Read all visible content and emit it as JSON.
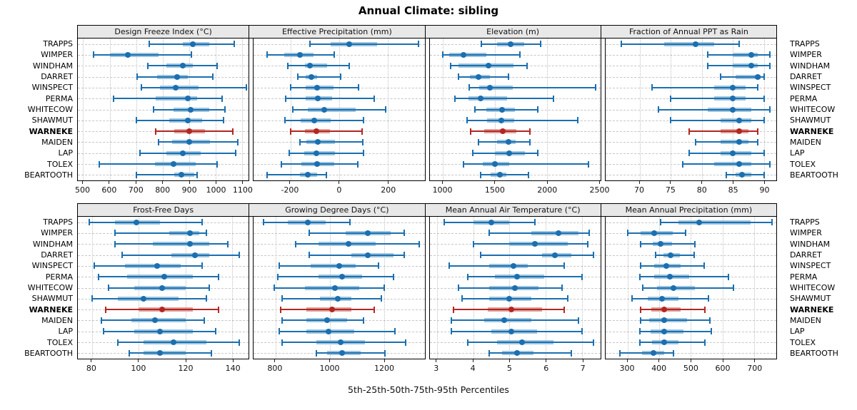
{
  "title": "Annual Climate: sibling",
  "caption": "5th-25th-50th-75th-95th Percentiles",
  "highlight_station": "WARNEKE",
  "colors": {
    "blue_line": "#1b6fb0",
    "blue_band": "#9ec5de",
    "blue_dot": "#1b6fb0",
    "red_line": "#b32622",
    "red_band": "#e0a09a",
    "red_dot": "#b32622",
    "strip_bg": "#e8e8e8",
    "grid": "#c4c4c4",
    "border": "#000000"
  },
  "chart_data": {
    "type": "scatter",
    "subtype": "percentile-interval-dotplot",
    "title": "Annual Climate: sibling",
    "xlabel": "5th-25th-50th-75th-95th Percentiles",
    "percentiles": [
      5,
      25,
      50,
      75,
      95
    ],
    "legend_position": "none",
    "grid": true,
    "stations": [
      "TRAPPS",
      "WIMPER",
      "WINDHAM",
      "DARRET",
      "WINSPECT",
      "PERMA",
      "WHITECOW",
      "SHAWMUT",
      "WARNEKE",
      "MAIDEN",
      "LAP",
      "TOLEX",
      "BEARTOOTH"
    ],
    "highlight_station": "WARNEKE",
    "panels": [
      {
        "title": "Design Freeze Index (°C)",
        "grid_row": 0,
        "xlim": [
          480,
          1125
        ],
        "ticks": [
          500,
          600,
          700,
          800,
          900,
          1000,
          1100
        ],
        "values": {
          "TRAPPS": [
            750,
            875,
            915,
            975,
            1070
          ],
          "WIMPER": [
            540,
            600,
            670,
            785,
            910
          ],
          "WINDHAM": [
            745,
            815,
            875,
            915,
            1005
          ],
          "DARRET": [
            705,
            780,
            855,
            895,
            990
          ],
          "WINSPECT": [
            720,
            790,
            850,
            935,
            1115
          ],
          "PERMA": [
            615,
            775,
            895,
            930,
            1025
          ],
          "WHITECOW": [
            765,
            840,
            905,
            975,
            1035
          ],
          "SHAWMUT": [
            700,
            825,
            895,
            950,
            1030
          ],
          "WARNEKE": [
            775,
            845,
            900,
            960,
            1065
          ],
          "MAIDEN": [
            785,
            835,
            900,
            980,
            1085
          ],
          "LAP": [
            715,
            815,
            875,
            945,
            1075
          ],
          "TOLEX": [
            560,
            770,
            840,
            925,
            1005
          ],
          "BEARTOOTH": [
            700,
            845,
            870,
            920,
            930
          ]
        }
      },
      {
        "title": "Effective Precipitation (mm)",
        "grid_row": 0,
        "xlim": [
          -350,
          350
        ],
        "ticks": [
          -200,
          0,
          200
        ],
        "values": {
          "TRAPPS": [
            -120,
            -35,
            40,
            155,
            325
          ],
          "WIMPER": [
            -295,
            -225,
            -160,
            -105,
            -20
          ],
          "WINDHAM": [
            -210,
            -140,
            -120,
            -50,
            40
          ],
          "DARRET": [
            -170,
            -138,
            -115,
            -90,
            5
          ],
          "WINSPECT": [
            -200,
            -137,
            -90,
            -22,
            80
          ],
          "PERMA": [
            -218,
            -136,
            -88,
            -30,
            145
          ],
          "WHITECOW": [
            -190,
            -127,
            -60,
            67,
            190
          ],
          "SHAWMUT": [
            -223,
            -158,
            -103,
            -34,
            99
          ],
          "WARNEKE": [
            -200,
            -140,
            -93,
            -38,
            93
          ],
          "MAIDEN": [
            -160,
            -133,
            -87,
            -17,
            96
          ],
          "LAP": [
            -205,
            -142,
            -93,
            -17,
            99
          ],
          "TOLEX": [
            -238,
            -154,
            -91,
            -21,
            77
          ],
          "BEARTOOTH": [
            -296,
            -161,
            -127,
            -89,
            -53
          ]
        }
      },
      {
        "title": "Elevation (m)",
        "grid_row": 0,
        "xlim": [
          870,
          2515
        ],
        "ticks": [
          1000,
          1500,
          2000,
          2500
        ],
        "values": {
          "TRAPPS": [
            1370,
            1520,
            1650,
            1780,
            1940
          ],
          "WIMPER": [
            1000,
            1060,
            1200,
            1420,
            1740
          ],
          "WINDHAM": [
            1070,
            1150,
            1440,
            1680,
            1810
          ],
          "DARRET": [
            1150,
            1260,
            1340,
            1450,
            1630
          ],
          "WINSPECT": [
            1250,
            1350,
            1450,
            1670,
            2470
          ],
          "PERMA": [
            1115,
            1245,
            1365,
            1615,
            2065
          ],
          "WHITECOW": [
            1305,
            1420,
            1565,
            1690,
            1910
          ],
          "SHAWMUT": [
            1230,
            1425,
            1560,
            1685,
            2300
          ],
          "WARNEKE": [
            1265,
            1395,
            1575,
            1705,
            1835
          ],
          "MAIDEN": [
            1340,
            1520,
            1630,
            1700,
            1835
          ],
          "LAP": [
            1285,
            1500,
            1635,
            1790,
            1915
          ],
          "TOLEX": [
            1200,
            1380,
            1500,
            1640,
            2400
          ],
          "BEARTOOTH": [
            1360,
            1460,
            1545,
            1610,
            1820
          ]
        }
      },
      {
        "title": "Fraction of Annual PPT as Rain",
        "grid_row": 0,
        "xlim": [
          64.5,
          92
        ],
        "ticks": [
          70,
          75,
          80,
          85,
          90
        ],
        "values": {
          "TRAPPS": [
            67,
            74,
            79,
            82,
            86
          ],
          "WIMPER": [
            81,
            85,
            88,
            89,
            91
          ],
          "WINDHAM": [
            81,
            85,
            88,
            89,
            91
          ],
          "DARRET": [
            83,
            85.5,
            89,
            89.5,
            90
          ],
          "WINSPECT": [
            72,
            82,
            85,
            87,
            89
          ],
          "PERMA": [
            75,
            82,
            85,
            87,
            90
          ],
          "WHITECOW": [
            73,
            81,
            85,
            88,
            91
          ],
          "SHAWMUT": [
            75,
            83,
            86,
            88,
            90
          ],
          "WARNEKE": [
            78,
            83,
            86,
            87.5,
            89
          ],
          "MAIDEN": [
            79,
            83,
            86,
            87.5,
            89
          ],
          "LAP": [
            78,
            83,
            85,
            88,
            90
          ],
          "TOLEX": [
            77,
            82,
            86,
            88,
            91
          ],
          "BEARTOOTH": [
            84,
            85.5,
            86.5,
            88,
            90
          ]
        }
      },
      {
        "title": "Frost-Free Days",
        "grid_row": 1,
        "xlim": [
          74,
          147
        ],
        "ticks": [
          80,
          100,
          120,
          140
        ],
        "values": {
          "TRAPPS": [
            79,
            90,
            99,
            109,
            127
          ],
          "WIMPER": [
            90,
            113,
            122,
            126,
            129
          ],
          "WINDHAM": [
            90,
            106,
            122,
            130,
            138
          ],
          "DARRET": [
            93,
            114,
            124,
            130,
            143
          ],
          "WINSPECT": [
            81,
            94,
            108,
            118,
            127
          ],
          "PERMA": [
            83,
            95,
            111,
            123,
            134
          ],
          "WHITECOW": [
            87,
            98,
            110,
            120,
            130
          ],
          "SHAWMUT": [
            80,
            91,
            102,
            117,
            129
          ],
          "WARNEKE": [
            86,
            100,
            110,
            123,
            134
          ],
          "MAIDEN": [
            84,
            97,
            107,
            120,
            128
          ],
          "LAP": [
            85,
            98,
            109,
            123,
            133
          ],
          "TOLEX": [
            91,
            102,
            115,
            129,
            143
          ],
          "BEARTOOTH": [
            96,
            102,
            109,
            120,
            131
          ]
        }
      },
      {
        "title": "Growing Degree Days (°C)",
        "grid_row": 1,
        "xlim": [
          720,
          1350
        ],
        "ticks": [
          800,
          1000,
          1200
        ],
        "values": {
          "TRAPPS": [
            755,
            845,
            920,
            985,
            1075
          ],
          "WIMPER": [
            925,
            1060,
            1140,
            1225,
            1275
          ],
          "WINDHAM": [
            875,
            960,
            1070,
            1170,
            1330
          ],
          "DARRET": [
            925,
            1080,
            1140,
            1235,
            1275
          ],
          "WINSPECT": [
            815,
            930,
            1035,
            1095,
            1180
          ],
          "PERMA": [
            810,
            960,
            1045,
            1120,
            1235
          ],
          "WHITECOW": [
            795,
            910,
            1020,
            1110,
            1200
          ],
          "SHAWMUT": [
            825,
            965,
            1030,
            1080,
            1190
          ],
          "WARNEKE": [
            820,
            915,
            1010,
            1080,
            1165
          ],
          "MAIDEN": [
            825,
            915,
            990,
            1065,
            1125
          ],
          "LAP": [
            815,
            915,
            995,
            1090,
            1240
          ],
          "TOLEX": [
            825,
            950,
            1040,
            1130,
            1280
          ],
          "BEARTOOTH": [
            950,
            990,
            1045,
            1115,
            1205
          ]
        }
      },
      {
        "title": "Mean Annual Air Temperature (°C)",
        "grid_row": 1,
        "xlim": [
          2.8,
          7.5
        ],
        "ticks": [
          3,
          4,
          5,
          6,
          7
        ],
        "values": {
          "TRAPPS": [
            3.2,
            4.0,
            4.5,
            5.0,
            5.7
          ],
          "WIMPER": [
            4.45,
            5.6,
            6.35,
            6.9,
            7.2
          ],
          "WINDHAM": [
            4.0,
            5.0,
            5.7,
            6.6,
            7.15
          ],
          "DARRET": [
            4.2,
            5.9,
            6.25,
            6.7,
            7.3
          ],
          "WINSPECT": [
            3.35,
            4.45,
            5.1,
            5.5,
            6.5
          ],
          "PERMA": [
            3.85,
            4.6,
            5.2,
            5.95,
            7.0
          ],
          "WHITECOW": [
            3.6,
            4.45,
            5.15,
            5.8,
            6.45
          ],
          "SHAWMUT": [
            3.7,
            4.45,
            5.0,
            5.6,
            6.6
          ],
          "WARNEKE": [
            3.45,
            4.4,
            5.05,
            5.9,
            6.5
          ],
          "MAIDEN": [
            3.4,
            4.3,
            4.85,
            5.6,
            6.9
          ],
          "LAP": [
            3.4,
            4.5,
            5.05,
            5.75,
            7.0
          ],
          "TOLEX": [
            3.85,
            4.65,
            5.35,
            6.2,
            7.3
          ],
          "BEARTOOTH": [
            4.45,
            4.8,
            5.2,
            5.65,
            6.7
          ]
        }
      },
      {
        "title": "Mean Annual Precipitation (mm)",
        "grid_row": 1,
        "xlim": [
          230,
          770
        ],
        "ticks": [
          300,
          400,
          500,
          600,
          700
        ],
        "values": {
          "TRAPPS": [
            405,
            460,
            527,
            688,
            757
          ],
          "WIMPER": [
            300,
            342,
            383,
            442,
            484
          ],
          "WINDHAM": [
            341,
            379,
            405,
            441,
            513
          ],
          "DARRET": [
            388,
            413,
            436,
            466,
            510
          ],
          "WINSPECT": [
            342,
            383,
            422,
            468,
            542
          ],
          "PERMA": [
            339,
            383,
            433,
            494,
            618
          ],
          "WHITECOW": [
            348,
            393,
            444,
            512,
            635
          ],
          "SHAWMUT": [
            315,
            363,
            409,
            460,
            555
          ],
          "WARNEKE": [
            342,
            376,
            415,
            467,
            545
          ],
          "MAIDEN": [
            342,
            368,
            415,
            487,
            559
          ],
          "LAP": [
            340,
            372,
            415,
            476,
            564
          ],
          "TOLEX": [
            339,
            377,
            415,
            461,
            544
          ],
          "BEARTOOTH": [
            276,
            346,
            381,
            416,
            446
          ]
        }
      }
    ]
  }
}
